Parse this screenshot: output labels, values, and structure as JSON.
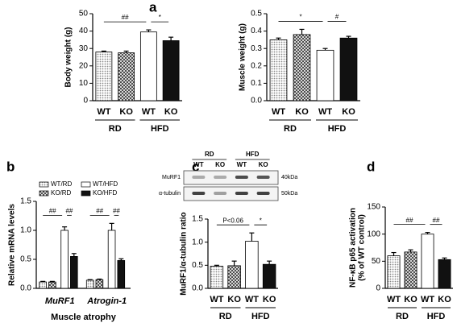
{
  "chart_data": [
    {
      "type": "bar",
      "panel_label": "a",
      "ylabel": "Body weight (g)",
      "categories": [
        "WT",
        "KO",
        "WT",
        "KO"
      ],
      "groups": [
        "RD",
        "HFD"
      ],
      "values": [
        28,
        27.5,
        39.5,
        34.5
      ],
      "errors": [
        0.5,
        1,
        1.2,
        2
      ],
      "fills": [
        "dots",
        "checker",
        "white",
        "black"
      ],
      "ylim": [
        0,
        50
      ],
      "yticks": [
        0,
        10,
        20,
        30,
        40,
        50
      ],
      "annotations": [
        {
          "text": "##",
          "from": 0,
          "to": 2
        },
        {
          "text": "*",
          "from": 2,
          "to": 3
        }
      ]
    },
    {
      "type": "bar",
      "ylabel": "Muscle weight (g)",
      "categories": [
        "WT",
        "KO",
        "WT",
        "KO"
      ],
      "groups": [
        "RD",
        "HFD"
      ],
      "values": [
        0.35,
        0.38,
        0.29,
        0.36
      ],
      "errors": [
        0.01,
        0.03,
        0.01,
        0.01
      ],
      "fills": [
        "dots",
        "checker",
        "white",
        "black"
      ],
      "ylim": [
        0,
        0.5
      ],
      "yticks": [
        {
          "value": 0,
          "label": "0.0"
        },
        0.1,
        0.2,
        0.3,
        0.4,
        0.5
      ],
      "annotations": [
        {
          "text": "*",
          "from": 0,
          "to": 2
        },
        {
          "text": "#",
          "from": 2,
          "to": 3
        }
      ]
    },
    {
      "type": "bar",
      "panel_label": "b",
      "ylabel": "Relative mRNA levels",
      "xlabel": "Muscle atrophy",
      "categories": [
        "MuRF1",
        "Atrogin-1"
      ],
      "series": [
        {
          "name": "WT/RD",
          "fill": "dots",
          "values": [
            0.11,
            0.14
          ],
          "errors": [
            0.01,
            0.01
          ]
        },
        {
          "name": "KO/RD",
          "fill": "checker",
          "values": [
            0.11,
            0.15
          ],
          "errors": [
            0.01,
            0.01
          ]
        },
        {
          "name": "WT/HFD",
          "fill": "white",
          "values": [
            1.0,
            1.0
          ],
          "errors": [
            0.06,
            0.12
          ]
        },
        {
          "name": "KO/HFD",
          "fill": "black",
          "values": [
            0.55,
            0.48
          ],
          "errors": [
            0.05,
            0.03
          ]
        }
      ],
      "ylim": [
        0,
        1.5
      ],
      "yticks": [
        {
          "value": 0,
          "label": "0.0"
        },
        0.5,
        {
          "value": 1,
          "label": "1.0"
        },
        1.5
      ],
      "annotations": [
        {
          "category": 0,
          "text": "##",
          "from": 0,
          "to": 2
        },
        {
          "category": 0,
          "text": "##",
          "from": 2,
          "to": 3
        },
        {
          "category": 1,
          "text": "##",
          "from": 0,
          "to": 2
        },
        {
          "category": 1,
          "text": "##",
          "from": 2,
          "to": 3
        }
      ]
    },
    {
      "type": "bar",
      "panel_label": "c",
      "ylabel": "MuRF1/α-tubulin ratio",
      "blot": {
        "groups": [
          "RD",
          "HFD"
        ],
        "lanes": [
          "WT",
          "KO",
          "WT",
          "KO"
        ],
        "bands": [
          {
            "name": "MuRF1",
            "size": "40kDa"
          },
          {
            "name": "α-tubulin",
            "size": "50kDa"
          }
        ]
      },
      "categories": [
        "WT",
        "KO",
        "WT",
        "KO"
      ],
      "groups": [
        "RD",
        "HFD"
      ],
      "values": [
        0.48,
        0.49,
        1.02,
        0.52
      ],
      "errors": [
        0.02,
        0.1,
        0.18,
        0.07
      ],
      "fills": [
        "dots",
        "checker",
        "white",
        "black"
      ],
      "ylim": [
        0,
        1.5
      ],
      "yticks": [
        {
          "value": 0,
          "label": "0.0"
        },
        0.5,
        {
          "value": 1,
          "label": "1.0"
        },
        1.5
      ],
      "annotations": [
        {
          "text": "P<0.06",
          "from": 0,
          "to": 2
        },
        {
          "text": "*",
          "from": 2,
          "to": 3
        }
      ]
    },
    {
      "type": "bar",
      "panel_label": "d",
      "ylabel": [
        "NF-κB p65 activation",
        "(% of WT control)"
      ],
      "categories": [
        "WT",
        "KO",
        "WT",
        "KO"
      ],
      "groups": [
        "RD",
        "HFD"
      ],
      "values": [
        60,
        67,
        100,
        53
      ],
      "errors": [
        6,
        4,
        3,
        3
      ],
      "fills": [
        "dots",
        "checker",
        "white",
        "black"
      ],
      "ylim": [
        0,
        150
      ],
      "yticks": [
        0,
        50,
        100,
        150
      ],
      "annotations": [
        {
          "text": "##",
          "from": 0,
          "to": 2
        },
        {
          "text": "##",
          "from": 2,
          "to": 3
        }
      ]
    }
  ]
}
